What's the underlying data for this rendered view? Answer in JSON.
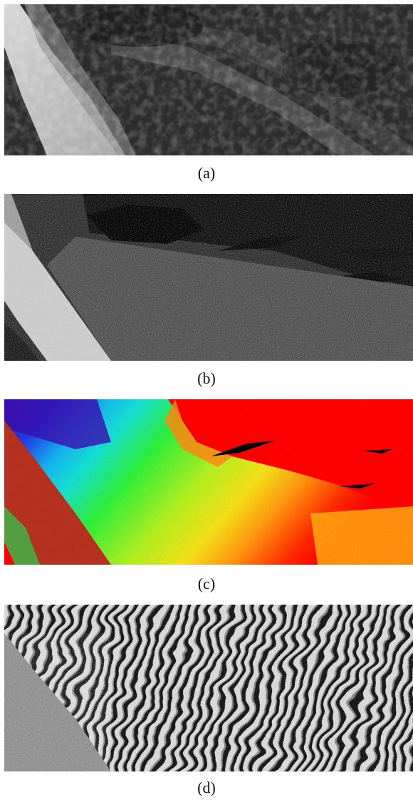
{
  "figure": {
    "panels": [
      {
        "id": "a",
        "label": "(a)",
        "content": "sar-amplitude-lowres-image"
      },
      {
        "id": "b",
        "label": "(b)",
        "content": "sar-amplitude-highres-image"
      },
      {
        "id": "c",
        "label": "(c)",
        "content": "color-height-map-image"
      },
      {
        "id": "d",
        "label": "(d)",
        "content": "interferometric-phase-fringe-image"
      }
    ]
  }
}
